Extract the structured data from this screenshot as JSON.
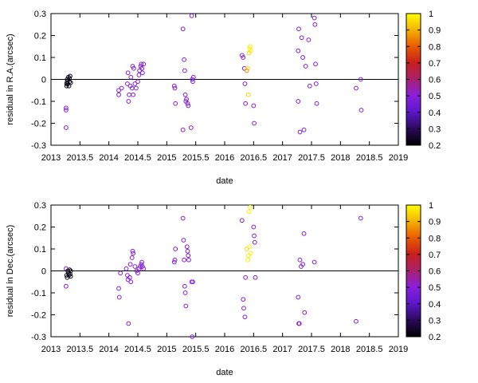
{
  "chart_data": [
    {
      "type": "scatter",
      "xlabel": "date",
      "ylabel": "residual in R.A.(arcsec)",
      "xlim": [
        2013,
        2019
      ],
      "ylim": [
        -0.3,
        0.3
      ],
      "x_ticks": [
        "2013",
        "2013.5",
        "2014",
        "2014.5",
        "2015",
        "2015.5",
        "2016",
        "2016.5",
        "2017",
        "2017.5",
        "2018",
        "2018.5",
        "2019"
      ],
      "y_ticks": [
        "-0.3",
        "-0.2",
        "-0.1",
        "0",
        "0.1",
        "0.2",
        "0.3"
      ],
      "colorbar": {
        "range": [
          0.2,
          1
        ],
        "ticks": [
          "0.2",
          "0.3",
          "0.4",
          "0.5",
          "0.6",
          "0.7",
          "0.8",
          "0.9",
          "1"
        ],
        "palette": "gnuplot"
      },
      "marker": "open-circle",
      "zero_line": true,
      "grid": false,
      "points": [
        {
          "x": 2013.26,
          "y": -0.22,
          "c": 0.48
        },
        {
          "x": 2013.26,
          "y": -0.13,
          "c": 0.48
        },
        {
          "x": 2013.26,
          "y": -0.14,
          "c": 0.48
        },
        {
          "x": 2013.27,
          "y": -0.02,
          "c": 0.22
        },
        {
          "x": 2013.27,
          "y": -0.03,
          "c": 0.22
        },
        {
          "x": 2013.28,
          "y": -0.01,
          "c": 0.22
        },
        {
          "x": 2013.28,
          "y": 0.0,
          "c": 0.22
        },
        {
          "x": 2013.29,
          "y": -0.02,
          "c": 0.22
        },
        {
          "x": 2013.3,
          "y": 0.01,
          "c": 0.22
        },
        {
          "x": 2013.31,
          "y": -0.03,
          "c": 0.22
        },
        {
          "x": 2013.32,
          "y": 0.005,
          "c": 0.22
        },
        {
          "x": 2013.32,
          "y": -0.01,
          "c": 0.22
        },
        {
          "x": 2013.33,
          "y": 0.015,
          "c": 0.22
        },
        {
          "x": 2013.34,
          "y": -0.015,
          "c": 0.22
        },
        {
          "x": 2014.17,
          "y": -0.05,
          "c": 0.48
        },
        {
          "x": 2014.17,
          "y": -0.07,
          "c": 0.48
        },
        {
          "x": 2014.22,
          "y": -0.04,
          "c": 0.48
        },
        {
          "x": 2014.32,
          "y": -0.02,
          "c": 0.48
        },
        {
          "x": 2014.33,
          "y": 0.03,
          "c": 0.48
        },
        {
          "x": 2014.34,
          "y": -0.1,
          "c": 0.48
        },
        {
          "x": 2014.35,
          "y": -0.07,
          "c": 0.48
        },
        {
          "x": 2014.37,
          "y": -0.03,
          "c": 0.48
        },
        {
          "x": 2014.38,
          "y": 0.01,
          "c": 0.48
        },
        {
          "x": 2014.4,
          "y": -0.04,
          "c": 0.48
        },
        {
          "x": 2014.41,
          "y": 0.06,
          "c": 0.48
        },
        {
          "x": 2014.42,
          "y": -0.07,
          "c": 0.48
        },
        {
          "x": 2014.43,
          "y": 0.05,
          "c": 0.48
        },
        {
          "x": 2014.45,
          "y": -0.02,
          "c": 0.48
        },
        {
          "x": 2014.47,
          "y": -0.04,
          "c": 0.48
        },
        {
          "x": 2014.5,
          "y": -0.01,
          "c": 0.48
        },
        {
          "x": 2014.52,
          "y": 0.02,
          "c": 0.48
        },
        {
          "x": 2014.53,
          "y": 0.04,
          "c": 0.48
        },
        {
          "x": 2014.55,
          "y": 0.06,
          "c": 0.48
        },
        {
          "x": 2014.56,
          "y": 0.07,
          "c": 0.48
        },
        {
          "x": 2014.57,
          "y": 0.05,
          "c": 0.48
        },
        {
          "x": 2014.58,
          "y": 0.03,
          "c": 0.48
        },
        {
          "x": 2014.6,
          "y": 0.07,
          "c": 0.48
        },
        {
          "x": 2015.13,
          "y": -0.03,
          "c": 0.48
        },
        {
          "x": 2015.14,
          "y": -0.04,
          "c": 0.48
        },
        {
          "x": 2015.15,
          "y": -0.11,
          "c": 0.48
        },
        {
          "x": 2015.28,
          "y": 0.23,
          "c": 0.48
        },
        {
          "x": 2015.28,
          "y": -0.23,
          "c": 0.48
        },
        {
          "x": 2015.3,
          "y": 0.09,
          "c": 0.48
        },
        {
          "x": 2015.31,
          "y": 0.04,
          "c": 0.48
        },
        {
          "x": 2015.32,
          "y": -0.07,
          "c": 0.48
        },
        {
          "x": 2015.33,
          "y": -0.1,
          "c": 0.48
        },
        {
          "x": 2015.34,
          "y": -0.09,
          "c": 0.48
        },
        {
          "x": 2015.36,
          "y": -0.11,
          "c": 0.48
        },
        {
          "x": 2015.37,
          "y": -0.12,
          "c": 0.48
        },
        {
          "x": 2015.42,
          "y": -0.22,
          "c": 0.48
        },
        {
          "x": 2015.43,
          "y": 0.29,
          "c": 0.48
        },
        {
          "x": 2015.44,
          "y": 0.0,
          "c": 0.48
        },
        {
          "x": 2015.45,
          "y": -0.01,
          "c": 0.48
        },
        {
          "x": 2015.46,
          "y": 0.01,
          "c": 0.48
        },
        {
          "x": 2016.3,
          "y": 0.11,
          "c": 0.48
        },
        {
          "x": 2016.32,
          "y": 0.1,
          "c": 0.48
        },
        {
          "x": 2016.34,
          "y": 0.05,
          "c": 0.48
        },
        {
          "x": 2016.35,
          "y": -0.02,
          "c": 0.48
        },
        {
          "x": 2016.36,
          "y": -0.11,
          "c": 0.48
        },
        {
          "x": 2016.38,
          "y": 0.04,
          "c": 0.85
        },
        {
          "x": 2016.4,
          "y": 0.05,
          "c": 0.95
        },
        {
          "x": 2016.41,
          "y": -0.07,
          "c": 0.95
        },
        {
          "x": 2016.42,
          "y": 0.12,
          "c": 0.95
        },
        {
          "x": 2016.43,
          "y": 0.14,
          "c": 0.98
        },
        {
          "x": 2016.44,
          "y": 0.15,
          "c": 0.98
        },
        {
          "x": 2016.45,
          "y": 0.13,
          "c": 0.98
        },
        {
          "x": 2016.5,
          "y": -0.12,
          "c": 0.48
        },
        {
          "x": 2016.51,
          "y": -0.2,
          "c": 0.48
        },
        {
          "x": 2017.27,
          "y": -0.1,
          "c": 0.48
        },
        {
          "x": 2017.28,
          "y": 0.23,
          "c": 0.48
        },
        {
          "x": 2017.3,
          "y": -0.24,
          "c": 0.48
        },
        {
          "x": 2017.33,
          "y": 0.19,
          "c": 0.48
        },
        {
          "x": 2017.35,
          "y": 0.1,
          "c": 0.48
        },
        {
          "x": 2017.37,
          "y": -0.23,
          "c": 0.48
        },
        {
          "x": 2017.4,
          "y": 0.06,
          "c": 0.48
        },
        {
          "x": 2017.45,
          "y": 0.18,
          "c": 0.48
        },
        {
          "x": 2017.47,
          "y": -0.03,
          "c": 0.48
        },
        {
          "x": 2017.55,
          "y": 0.28,
          "c": 0.48
        },
        {
          "x": 2017.56,
          "y": 0.25,
          "c": 0.48
        },
        {
          "x": 2017.57,
          "y": 0.07,
          "c": 0.48
        },
        {
          "x": 2017.58,
          "y": -0.02,
          "c": 0.48
        },
        {
          "x": 2017.59,
          "y": -0.11,
          "c": 0.48
        },
        {
          "x": 2018.27,
          "y": -0.04,
          "c": 0.48
        },
        {
          "x": 2018.35,
          "y": 0.0,
          "c": 0.48
        },
        {
          "x": 2018.36,
          "y": -0.14,
          "c": 0.48
        },
        {
          "x": 2017.27,
          "y": 0.13,
          "c": 0.48
        }
      ]
    },
    {
      "type": "scatter",
      "xlabel": "date",
      "ylabel": "residual in Dec.(arcsec)",
      "xlim": [
        2013,
        2019
      ],
      "ylim": [
        -0.3,
        0.3
      ],
      "x_ticks": [
        "2013",
        "2013.5",
        "2014",
        "2014.5",
        "2015",
        "2015.5",
        "2016",
        "2016.5",
        "2017",
        "2017.5",
        "2018",
        "2018.5",
        "2019"
      ],
      "y_ticks": [
        "-0.3",
        "-0.2",
        "-0.1",
        "0",
        "0.1",
        "0.2",
        "0.3"
      ],
      "colorbar": {
        "range": [
          0.2,
          1
        ],
        "ticks": [
          "0.2",
          "0.3",
          "0.4",
          "0.5",
          "0.6",
          "0.7",
          "0.8",
          "0.9",
          "1"
        ],
        "palette": "gnuplot"
      },
      "marker": "open-circle",
      "zero_line": true,
      "grid": false,
      "points": [
        {
          "x": 2013.26,
          "y": 0.01,
          "c": 0.48
        },
        {
          "x": 2013.26,
          "y": -0.07,
          "c": 0.48
        },
        {
          "x": 2013.27,
          "y": -0.02,
          "c": 0.22
        },
        {
          "x": 2013.28,
          "y": -0.03,
          "c": 0.22
        },
        {
          "x": 2013.29,
          "y": 0.0,
          "c": 0.22
        },
        {
          "x": 2013.3,
          "y": -0.01,
          "c": 0.22
        },
        {
          "x": 2013.31,
          "y": -0.02,
          "c": 0.22
        },
        {
          "x": 2013.32,
          "y": 0.005,
          "c": 0.22
        },
        {
          "x": 2013.33,
          "y": -0.015,
          "c": 0.22
        },
        {
          "x": 2013.34,
          "y": 0.0,
          "c": 0.22
        },
        {
          "x": 2013.34,
          "y": -0.025,
          "c": 0.22
        },
        {
          "x": 2014.17,
          "y": -0.08,
          "c": 0.48
        },
        {
          "x": 2014.18,
          "y": -0.12,
          "c": 0.48
        },
        {
          "x": 2014.2,
          "y": -0.01,
          "c": 0.48
        },
        {
          "x": 2014.3,
          "y": 0.01,
          "c": 0.48
        },
        {
          "x": 2014.32,
          "y": -0.02,
          "c": 0.48
        },
        {
          "x": 2014.33,
          "y": -0.04,
          "c": 0.48
        },
        {
          "x": 2014.34,
          "y": -0.24,
          "c": 0.48
        },
        {
          "x": 2014.36,
          "y": -0.03,
          "c": 0.48
        },
        {
          "x": 2014.37,
          "y": 0.03,
          "c": 0.48
        },
        {
          "x": 2014.38,
          "y": -0.05,
          "c": 0.48
        },
        {
          "x": 2014.4,
          "y": 0.06,
          "c": 0.48
        },
        {
          "x": 2014.41,
          "y": 0.09,
          "c": 0.48
        },
        {
          "x": 2014.42,
          "y": 0.08,
          "c": 0.48
        },
        {
          "x": 2014.45,
          "y": 0.02,
          "c": 0.48
        },
        {
          "x": 2014.48,
          "y": 0.0,
          "c": 0.48
        },
        {
          "x": 2014.5,
          "y": -0.01,
          "c": 0.48
        },
        {
          "x": 2014.52,
          "y": 0.01,
          "c": 0.48
        },
        {
          "x": 2014.54,
          "y": 0.02,
          "c": 0.48
        },
        {
          "x": 2014.56,
          "y": 0.03,
          "c": 0.48
        },
        {
          "x": 2014.57,
          "y": 0.04,
          "c": 0.48
        },
        {
          "x": 2014.58,
          "y": 0.02,
          "c": 0.48
        },
        {
          "x": 2014.6,
          "y": 0.01,
          "c": 0.48
        },
        {
          "x": 2015.13,
          "y": 0.04,
          "c": 0.48
        },
        {
          "x": 2015.14,
          "y": 0.05,
          "c": 0.48
        },
        {
          "x": 2015.15,
          "y": 0.1,
          "c": 0.48
        },
        {
          "x": 2015.28,
          "y": 0.24,
          "c": 0.48
        },
        {
          "x": 2015.29,
          "y": 0.14,
          "c": 0.48
        },
        {
          "x": 2015.3,
          "y": 0.05,
          "c": 0.48
        },
        {
          "x": 2015.31,
          "y": -0.07,
          "c": 0.48
        },
        {
          "x": 2015.32,
          "y": -0.1,
          "c": 0.48
        },
        {
          "x": 2015.33,
          "y": -0.16,
          "c": 0.48
        },
        {
          "x": 2015.35,
          "y": 0.11,
          "c": 0.48
        },
        {
          "x": 2015.36,
          "y": 0.09,
          "c": 0.48
        },
        {
          "x": 2015.37,
          "y": 0.07,
          "c": 0.48
        },
        {
          "x": 2015.38,
          "y": 0.05,
          "c": 0.48
        },
        {
          "x": 2015.43,
          "y": -0.05,
          "c": 0.48
        },
        {
          "x": 2015.44,
          "y": -0.3,
          "c": 0.48
        },
        {
          "x": 2015.45,
          "y": -0.05,
          "c": 0.48
        },
        {
          "x": 2016.3,
          "y": 0.23,
          "c": 0.48
        },
        {
          "x": 2016.32,
          "y": -0.13,
          "c": 0.48
        },
        {
          "x": 2016.33,
          "y": -0.17,
          "c": 0.48
        },
        {
          "x": 2016.35,
          "y": -0.21,
          "c": 0.48
        },
        {
          "x": 2016.36,
          "y": -0.03,
          "c": 0.48
        },
        {
          "x": 2016.38,
          "y": 0.1,
          "c": 0.95
        },
        {
          "x": 2016.4,
          "y": 0.05,
          "c": 0.98
        },
        {
          "x": 2016.41,
          "y": 0.07,
          "c": 0.98
        },
        {
          "x": 2016.42,
          "y": 0.27,
          "c": 0.98
        },
        {
          "x": 2016.43,
          "y": 0.11,
          "c": 0.98
        },
        {
          "x": 2016.44,
          "y": 0.29,
          "c": 0.98
        },
        {
          "x": 2016.45,
          "y": 0.08,
          "c": 0.98
        },
        {
          "x": 2016.5,
          "y": 0.2,
          "c": 0.48
        },
        {
          "x": 2016.51,
          "y": 0.16,
          "c": 0.48
        },
        {
          "x": 2016.52,
          "y": 0.13,
          "c": 0.48
        },
        {
          "x": 2016.53,
          "y": -0.03,
          "c": 0.48
        },
        {
          "x": 2017.27,
          "y": -0.12,
          "c": 0.48
        },
        {
          "x": 2017.28,
          "y": -0.24,
          "c": 0.48
        },
        {
          "x": 2017.29,
          "y": -0.24,
          "c": 0.48
        },
        {
          "x": 2017.3,
          "y": 0.05,
          "c": 0.48
        },
        {
          "x": 2017.32,
          "y": 0.02,
          "c": 0.48
        },
        {
          "x": 2017.35,
          "y": 0.03,
          "c": 0.48
        },
        {
          "x": 2017.37,
          "y": 0.17,
          "c": 0.48
        },
        {
          "x": 2017.38,
          "y": -0.19,
          "c": 0.48
        },
        {
          "x": 2017.55,
          "y": 0.04,
          "c": 0.48
        },
        {
          "x": 2018.27,
          "y": -0.23,
          "c": 0.48
        },
        {
          "x": 2018.35,
          "y": 0.24,
          "c": 0.48
        }
      ]
    }
  ]
}
